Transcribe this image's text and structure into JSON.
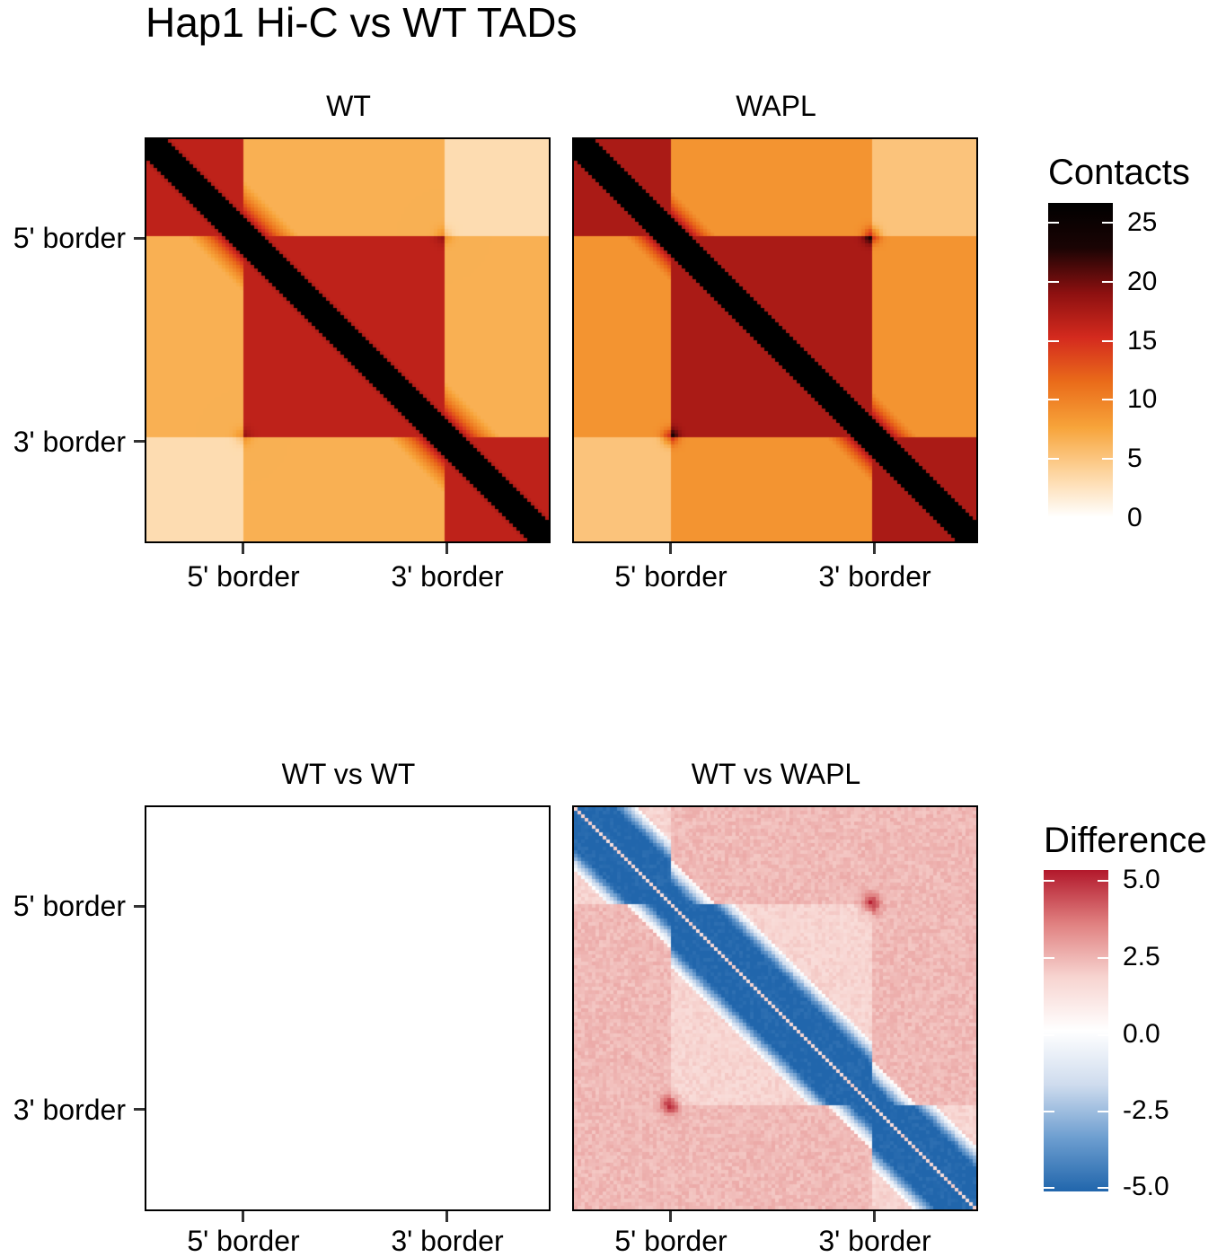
{
  "title": "Hap1 Hi-C vs WT TADs",
  "axis_ticks": [
    "5' border",
    "3' border"
  ],
  "panels": {
    "wt": {
      "title": "WT"
    },
    "wapl": {
      "title": "WAPL"
    },
    "wt_vs_wt": {
      "title": "WT vs WT"
    },
    "wt_vs_wapl": {
      "title": "WT vs WAPL"
    }
  },
  "legends": {
    "contacts": {
      "title": "Contacts",
      "ticks": [
        "25",
        "20",
        "15",
        "10",
        "5",
        "0"
      ],
      "colors": [
        "#ffffff",
        "#fdd49e",
        "#f7a43a",
        "#ea6c1a",
        "#d42a1e",
        "#8c1010",
        "#1a0404",
        "#000000"
      ]
    },
    "difference": {
      "title": "Difference",
      "ticks": [
        "5.0",
        "2.5",
        "0.0",
        "-2.5",
        "-5.0"
      ],
      "colors": [
        "#b2182b",
        "#e08080",
        "#f7d4d0",
        "#ffffff",
        "#cfdcee",
        "#6d9ed0",
        "#2166ac"
      ]
    }
  },
  "chart_data": [
    {
      "type": "heatmap",
      "title": "WT",
      "xlabel": "",
      "ylabel": "",
      "x_ticks": [
        "5' border",
        "3' border"
      ],
      "y_ticks": [
        "5' border",
        "3' border"
      ],
      "value_range": [
        0,
        26
      ],
      "colorbar": "Contacts",
      "description_values": {
        "diagonal": 26,
        "within_tad": 16,
        "adjacent_tad": 6,
        "far_corner": 3
      }
    },
    {
      "type": "heatmap",
      "title": "WAPL",
      "xlabel": "",
      "ylabel": "",
      "x_ticks": [
        "5' border",
        "3' border"
      ],
      "y_ticks": [
        "5' border",
        "3' border"
      ],
      "value_range": [
        0,
        26
      ],
      "colorbar": "Contacts",
      "description_values": {
        "diagonal": 26,
        "within_tad": 17,
        "adjacent_tad": 8,
        "far_corner": 5
      }
    },
    {
      "type": "heatmap",
      "title": "WT vs WT",
      "xlabel": "",
      "ylabel": "",
      "x_ticks": [
        "5' border",
        "3' border"
      ],
      "y_ticks": [
        "5' border",
        "3' border"
      ],
      "value_range": [
        -5,
        5
      ],
      "colorbar": "Difference",
      "description_values": {
        "all": 0
      }
    },
    {
      "type": "heatmap",
      "title": "WT vs WAPL",
      "xlabel": "",
      "ylabel": "",
      "x_ticks": [
        "5' border",
        "3' border"
      ],
      "y_ticks": [
        "5' border",
        "3' border"
      ],
      "value_range": [
        -5,
        5
      ],
      "colorbar": "Difference",
      "description_values": {
        "diagonal_band": -5,
        "off_diagonal": 1.8,
        "corner_dots": 3
      }
    }
  ]
}
